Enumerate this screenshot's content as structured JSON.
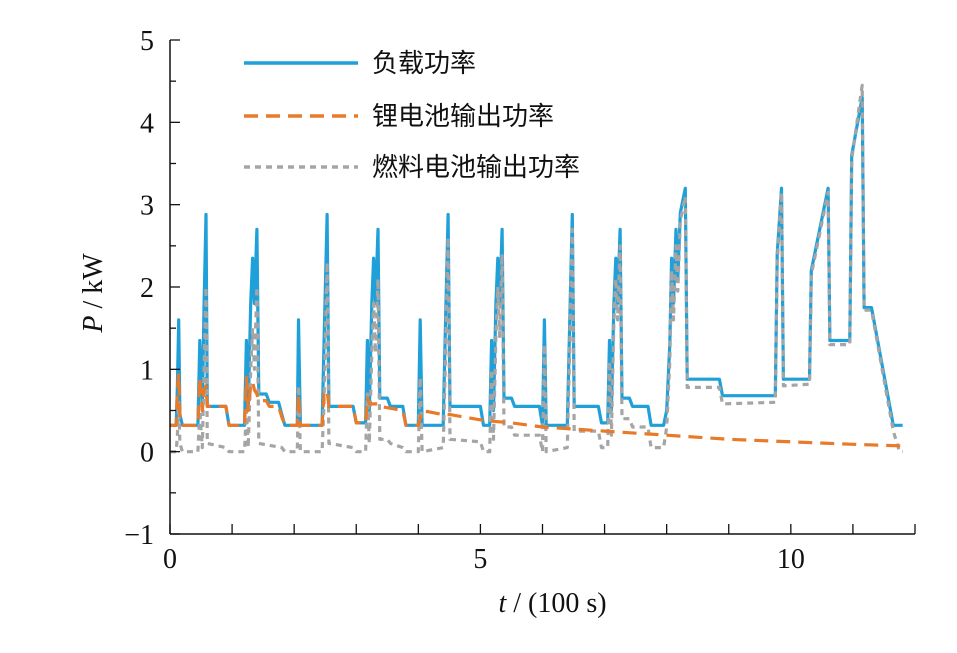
{
  "chart_data": {
    "type": "line",
    "xlabel_var": "t",
    "xlabel_unit": " / (100 s)",
    "ylabel_var": "P",
    "ylabel_unit": " / kW",
    "xlim": [
      0,
      12
    ],
    "ylim": [
      -1,
      5
    ],
    "xticks": [
      0,
      5,
      10
    ],
    "xtick_labels": [
      "0",
      "5",
      "10"
    ],
    "yticks": [
      -1,
      0,
      1,
      2,
      3,
      4,
      5
    ],
    "ytick_labels": [
      "−1",
      "0",
      "1",
      "2",
      "3",
      "4",
      "5"
    ],
    "grid": false,
    "legend_position": "top-left",
    "series": [
      {
        "name": "负载功率",
        "color": "#1fa0d8",
        "style": "solid",
        "points": [
          [
            0,
            0.32
          ],
          [
            0.1,
            0.32
          ],
          [
            0.12,
            0.8
          ],
          [
            0.14,
            1.6
          ],
          [
            0.16,
            0.45
          ],
          [
            0.2,
            0.32
          ],
          [
            0.45,
            0.32
          ],
          [
            0.48,
            1.35
          ],
          [
            0.52,
            0.5
          ],
          [
            0.55,
            1.8
          ],
          [
            0.58,
            2.88
          ],
          [
            0.6,
            0.55
          ],
          [
            0.9,
            0.55
          ],
          [
            0.95,
            0.32
          ],
          [
            1.2,
            0.32
          ],
          [
            1.23,
            1.35
          ],
          [
            1.26,
            0.5
          ],
          [
            1.3,
            1.8
          ],
          [
            1.33,
            2.35
          ],
          [
            1.36,
            1.8
          ],
          [
            1.4,
            2.7
          ],
          [
            1.43,
            0.7
          ],
          [
            1.55,
            0.7
          ],
          [
            1.6,
            0.6
          ],
          [
            1.75,
            0.6
          ],
          [
            1.8,
            0.45
          ],
          [
            1.85,
            0.32
          ],
          [
            2.05,
            0.32
          ],
          [
            2.07,
            1.6
          ],
          [
            2.1,
            0.32
          ],
          [
            2.45,
            0.32
          ],
          [
            2.48,
            1.3
          ],
          [
            2.53,
            2.88
          ],
          [
            2.56,
            0.55
          ],
          [
            2.95,
            0.55
          ],
          [
            3.0,
            0.35
          ],
          [
            3.15,
            0.35
          ],
          [
            3.18,
            1.35
          ],
          [
            3.21,
            0.5
          ],
          [
            3.25,
            1.8
          ],
          [
            3.28,
            2.35
          ],
          [
            3.31,
            1.8
          ],
          [
            3.35,
            2.7
          ],
          [
            3.38,
            0.65
          ],
          [
            3.5,
            0.65
          ],
          [
            3.55,
            0.55
          ],
          [
            3.75,
            0.55
          ],
          [
            3.8,
            0.32
          ],
          [
            4.0,
            0.32
          ],
          [
            4.03,
            1.6
          ],
          [
            4.06,
            0.32
          ],
          [
            4.4,
            0.32
          ],
          [
            4.43,
            1.3
          ],
          [
            4.48,
            2.88
          ],
          [
            4.51,
            0.55
          ],
          [
            5.0,
            0.55
          ],
          [
            5.05,
            0.32
          ],
          [
            5.15,
            0.32
          ],
          [
            5.18,
            1.35
          ],
          [
            5.21,
            0.5
          ],
          [
            5.25,
            1.8
          ],
          [
            5.28,
            2.35
          ],
          [
            5.31,
            1.8
          ],
          [
            5.35,
            2.7
          ],
          [
            5.38,
            0.65
          ],
          [
            5.5,
            0.65
          ],
          [
            5.55,
            0.55
          ],
          [
            5.95,
            0.55
          ],
          [
            6.0,
            0.32
          ],
          [
            6.03,
            1.6
          ],
          [
            6.06,
            0.32
          ],
          [
            6.4,
            0.32
          ],
          [
            6.43,
            1.3
          ],
          [
            6.48,
            2.88
          ],
          [
            6.51,
            0.55
          ],
          [
            6.9,
            0.55
          ],
          [
            6.95,
            0.35
          ],
          [
            7.05,
            0.35
          ],
          [
            7.08,
            1.35
          ],
          [
            7.11,
            0.5
          ],
          [
            7.15,
            1.8
          ],
          [
            7.18,
            2.35
          ],
          [
            7.21,
            1.8
          ],
          [
            7.25,
            2.7
          ],
          [
            7.28,
            0.65
          ],
          [
            7.4,
            0.65
          ],
          [
            7.45,
            0.55
          ],
          [
            7.7,
            0.55
          ],
          [
            7.75,
            0.32
          ],
          [
            7.95,
            0.32
          ],
          [
            8.0,
            0.5
          ],
          [
            8.05,
            1.3
          ],
          [
            8.08,
            2.35
          ],
          [
            8.11,
            1.8
          ],
          [
            8.15,
            2.7
          ],
          [
            8.18,
            2.1
          ],
          [
            8.22,
            2.9
          ],
          [
            8.3,
            3.2
          ],
          [
            8.33,
            0.88
          ],
          [
            8.85,
            0.88
          ],
          [
            8.9,
            0.68
          ],
          [
            9.75,
            0.68
          ],
          [
            9.78,
            2.4
          ],
          [
            9.85,
            3.2
          ],
          [
            9.88,
            0.88
          ],
          [
            10.3,
            0.88
          ],
          [
            10.33,
            2.2
          ],
          [
            10.6,
            3.2
          ],
          [
            10.63,
            1.35
          ],
          [
            10.95,
            1.35
          ],
          [
            10.98,
            3.6
          ],
          [
            11.15,
            4.3
          ],
          [
            11.18,
            1.75
          ],
          [
            11.3,
            1.75
          ],
          [
            11.65,
            0.32
          ],
          [
            11.8,
            0.32
          ]
        ]
      },
      {
        "name": "锂电池输出功率",
        "color": "#e87a2a",
        "style": "dashed",
        "points": [
          [
            0,
            0.32
          ],
          [
            0.1,
            0.32
          ],
          [
            0.12,
            0.75
          ],
          [
            0.14,
            0.95
          ],
          [
            0.16,
            0.45
          ],
          [
            0.2,
            0.32
          ],
          [
            0.45,
            0.32
          ],
          [
            0.48,
            0.9
          ],
          [
            0.52,
            0.5
          ],
          [
            0.55,
            0.75
          ],
          [
            0.58,
            0.8
          ],
          [
            0.6,
            0.55
          ],
          [
            0.9,
            0.55
          ],
          [
            0.95,
            0.32
          ],
          [
            1.2,
            0.32
          ],
          [
            1.23,
            0.9
          ],
          [
            1.26,
            0.5
          ],
          [
            1.3,
            0.8
          ],
          [
            1.33,
            0.85
          ],
          [
            1.36,
            0.75
          ],
          [
            1.4,
            0.7
          ],
          [
            1.43,
            0.62
          ],
          [
            1.55,
            0.62
          ],
          [
            1.6,
            0.55
          ],
          [
            1.75,
            0.55
          ],
          [
            1.8,
            0.42
          ],
          [
            1.85,
            0.32
          ],
          [
            2.05,
            0.32
          ],
          [
            2.07,
            0.7
          ],
          [
            2.1,
            0.32
          ],
          [
            2.45,
            0.32
          ],
          [
            2.48,
            0.7
          ],
          [
            2.53,
            0.75
          ],
          [
            2.56,
            0.55
          ],
          [
            2.95,
            0.55
          ],
          [
            3.0,
            0.35
          ],
          [
            3.15,
            0.35
          ],
          [
            3.18,
            0.65
          ],
          [
            3.21,
            0.58
          ],
          [
            3.35,
            0.58
          ],
          [
            3.38,
            0.55
          ],
          [
            3.75,
            0.5
          ],
          [
            3.8,
            0.32
          ],
          [
            4.0,
            0.32
          ],
          [
            4.06,
            0.5
          ],
          [
            4.4,
            0.45
          ],
          [
            4.51,
            0.45
          ],
          [
            5.05,
            0.38
          ],
          [
            5.5,
            0.35
          ],
          [
            6.0,
            0.3
          ],
          [
            7.0,
            0.25
          ],
          [
            8.0,
            0.2
          ],
          [
            9.0,
            0.15
          ],
          [
            10.0,
            0.12
          ],
          [
            11.0,
            0.09
          ],
          [
            11.8,
            0.07
          ]
        ]
      },
      {
        "name": "燃料电池输出功率",
        "color": "#a5a5a5",
        "style": "dotted",
        "points": [
          [
            0,
            0.0
          ],
          [
            0.1,
            0.0
          ],
          [
            0.12,
            0.2
          ],
          [
            0.14,
            0.6
          ],
          [
            0.16,
            0.1
          ],
          [
            0.2,
            0.0
          ],
          [
            0.45,
            0.0
          ],
          [
            0.48,
            0.5
          ],
          [
            0.52,
            0.05
          ],
          [
            0.55,
            1.0
          ],
          [
            0.58,
            2.0
          ],
          [
            0.6,
            0.1
          ],
          [
            0.9,
            0.05
          ],
          [
            0.95,
            0.0
          ],
          [
            1.2,
            0.0
          ],
          [
            1.23,
            0.5
          ],
          [
            1.26,
            0.05
          ],
          [
            1.3,
            1.0
          ],
          [
            1.33,
            1.5
          ],
          [
            1.36,
            1.0
          ],
          [
            1.4,
            2.0
          ],
          [
            1.43,
            0.1
          ],
          [
            1.8,
            0.05
          ],
          [
            1.85,
            0.0
          ],
          [
            2.05,
            0.0
          ],
          [
            2.07,
            0.8
          ],
          [
            2.1,
            0.0
          ],
          [
            2.45,
            0.0
          ],
          [
            2.48,
            0.6
          ],
          [
            2.53,
            2.3
          ],
          [
            2.56,
            0.1
          ],
          [
            2.95,
            0.05
          ],
          [
            3.0,
            0.0
          ],
          [
            3.15,
            0.0
          ],
          [
            3.18,
            0.7
          ],
          [
            3.21,
            0.1
          ],
          [
            3.25,
            1.2
          ],
          [
            3.28,
            1.8
          ],
          [
            3.31,
            1.2
          ],
          [
            3.35,
            2.1
          ],
          [
            3.38,
            0.15
          ],
          [
            3.5,
            0.15
          ],
          [
            3.55,
            0.1
          ],
          [
            3.75,
            0.05
          ],
          [
            3.8,
            0.0
          ],
          [
            4.0,
            0.0
          ],
          [
            4.03,
            0.9
          ],
          [
            4.06,
            0.0
          ],
          [
            4.4,
            0.05
          ],
          [
            4.43,
            0.9
          ],
          [
            4.48,
            2.6
          ],
          [
            4.51,
            0.15
          ],
          [
            5.0,
            0.12
          ],
          [
            5.05,
            0.0
          ],
          [
            5.15,
            0.0
          ],
          [
            5.18,
            1.0
          ],
          [
            5.21,
            0.15
          ],
          [
            5.25,
            1.4
          ],
          [
            5.28,
            2.0
          ],
          [
            5.31,
            1.4
          ],
          [
            5.35,
            2.4
          ],
          [
            5.38,
            0.3
          ],
          [
            5.5,
            0.3
          ],
          [
            5.55,
            0.2
          ],
          [
            5.95,
            0.2
          ],
          [
            6.0,
            0.0
          ],
          [
            6.03,
            1.3
          ],
          [
            6.06,
            0.0
          ],
          [
            6.4,
            0.05
          ],
          [
            6.43,
            1.0
          ],
          [
            6.48,
            2.7
          ],
          [
            6.51,
            0.25
          ],
          [
            6.9,
            0.25
          ],
          [
            6.95,
            0.05
          ],
          [
            7.05,
            0.05
          ],
          [
            7.08,
            1.1
          ],
          [
            7.11,
            0.2
          ],
          [
            7.15,
            1.6
          ],
          [
            7.18,
            2.1
          ],
          [
            7.21,
            1.6
          ],
          [
            7.25,
            2.5
          ],
          [
            7.28,
            0.4
          ],
          [
            7.4,
            0.4
          ],
          [
            7.45,
            0.3
          ],
          [
            7.7,
            0.3
          ],
          [
            7.75,
            0.05
          ],
          [
            7.95,
            0.05
          ],
          [
            8.0,
            0.3
          ],
          [
            8.05,
            1.1
          ],
          [
            8.08,
            2.2
          ],
          [
            8.11,
            1.6
          ],
          [
            8.15,
            2.5
          ],
          [
            8.18,
            1.95
          ],
          [
            8.22,
            2.8
          ],
          [
            8.3,
            3.1
          ],
          [
            8.33,
            0.78
          ],
          [
            8.85,
            0.78
          ],
          [
            8.9,
            0.58
          ],
          [
            9.75,
            0.6
          ],
          [
            9.78,
            2.3
          ],
          [
            9.85,
            3.15
          ],
          [
            9.88,
            0.8
          ],
          [
            10.3,
            0.82
          ],
          [
            10.33,
            2.15
          ],
          [
            10.6,
            3.15
          ],
          [
            10.63,
            1.3
          ],
          [
            10.95,
            1.3
          ],
          [
            10.98,
            3.55
          ],
          [
            11.15,
            4.45
          ],
          [
            11.18,
            1.72
          ],
          [
            11.3,
            1.72
          ],
          [
            11.65,
            0.25
          ],
          [
            11.75,
            0.0
          ],
          [
            11.8,
            0.0
          ]
        ]
      }
    ]
  }
}
